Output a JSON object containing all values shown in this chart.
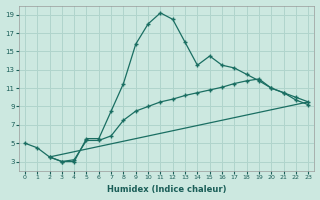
{
  "title": "",
  "xlabel": "Humidex (Indice chaleur)",
  "background_color": "#cce8e0",
  "grid_color": "#b0d4cc",
  "line_color": "#1a6e62",
  "line1_x": [
    0,
    1,
    2,
    3,
    4,
    5,
    6,
    7,
    8,
    9,
    10,
    11,
    12,
    13,
    14,
    15,
    16,
    17,
    18,
    19,
    20,
    21,
    22,
    23
  ],
  "line1_y": [
    5.0,
    4.5,
    3.5,
    3.0,
    3.0,
    5.5,
    5.5,
    8.5,
    11.5,
    15.8,
    18.0,
    19.2,
    18.5,
    16.0,
    13.5,
    14.5,
    13.5,
    13.2,
    12.5,
    11.8,
    11.0,
    10.5,
    9.7,
    9.2
  ],
  "line2_x": [
    2,
    3,
    4,
    5,
    6,
    7,
    8,
    9,
    10,
    11,
    12,
    13,
    14,
    15,
    16,
    17,
    18,
    19,
    20,
    21,
    22,
    23
  ],
  "line2_y": [
    3.5,
    3.0,
    3.2,
    5.3,
    5.3,
    5.8,
    7.5,
    8.5,
    9.0,
    9.5,
    9.8,
    10.2,
    10.5,
    10.8,
    11.1,
    11.5,
    11.8,
    12.0,
    11.0,
    10.5,
    10.0,
    9.5
  ],
  "line3_x": [
    2,
    3,
    4,
    5,
    23
  ],
  "line3_y": [
    3.5,
    3.0,
    3.2,
    5.3,
    9.5
  ],
  "line4_x": [
    5,
    23
  ],
  "line4_y": [
    5.3,
    9.5
  ],
  "xmin": 0,
  "xmax": 23,
  "ymin": 2,
  "ymax": 20,
  "yticks": [
    3,
    5,
    7,
    9,
    11,
    13,
    15,
    17,
    19
  ],
  "xticks": [
    0,
    1,
    2,
    3,
    4,
    5,
    6,
    7,
    8,
    9,
    10,
    11,
    12,
    13,
    14,
    15,
    16,
    17,
    18,
    19,
    20,
    21,
    22,
    23
  ]
}
